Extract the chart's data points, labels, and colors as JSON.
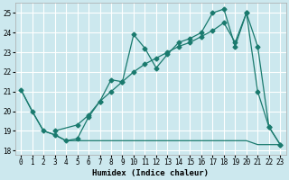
{
  "xlabel": "Humidex (Indice chaleur)",
  "xlim": [
    -0.5,
    23.5
  ],
  "ylim": [
    17.8,
    25.5
  ],
  "yticks": [
    18,
    19,
    20,
    21,
    22,
    23,
    24,
    25
  ],
  "xticks": [
    0,
    1,
    2,
    3,
    4,
    5,
    6,
    7,
    8,
    9,
    10,
    11,
    12,
    13,
    14,
    15,
    16,
    17,
    18,
    19,
    20,
    21,
    22,
    23
  ],
  "background_color": "#cce8ee",
  "grid_color": "#ffffff",
  "line_color": "#1a7a6e",
  "curve1_x": [
    0,
    1,
    2,
    3,
    4,
    5,
    6,
    7,
    8,
    9,
    10,
    11,
    12,
    13,
    14,
    15,
    16,
    17,
    18,
    19,
    20,
    21,
    22,
    23
  ],
  "curve1_y": [
    21.1,
    20.0,
    19.0,
    18.8,
    18.5,
    18.6,
    19.7,
    20.5,
    21.6,
    21.5,
    23.9,
    23.2,
    22.2,
    22.9,
    23.5,
    23.7,
    24.0,
    25.0,
    25.2,
    23.3,
    25.0,
    21.0,
    19.2,
    18.3
  ],
  "curve2_x": [
    0,
    1,
    2,
    3,
    4,
    5,
    6,
    7,
    8,
    9,
    10,
    11,
    12,
    13,
    14,
    15,
    16,
    17,
    18,
    19,
    20,
    21,
    22,
    23
  ],
  "curve2_y": [
    21.1,
    20.0,
    19.0,
    18.8,
    18.5,
    18.5,
    18.5,
    18.5,
    18.5,
    18.5,
    18.5,
    18.5,
    18.5,
    18.5,
    18.5,
    18.5,
    18.5,
    18.5,
    18.5,
    18.5,
    18.5,
    18.3,
    18.3,
    18.3
  ],
  "curve3_x": [
    3,
    5,
    6,
    7,
    8,
    9,
    10,
    11,
    12,
    13,
    14,
    15,
    16,
    17,
    18,
    19,
    20,
    21,
    22,
    23
  ],
  "curve3_y": [
    19.0,
    19.3,
    19.8,
    20.5,
    21.0,
    21.5,
    22.0,
    22.4,
    22.7,
    23.0,
    23.3,
    23.5,
    23.8,
    24.1,
    24.5,
    23.5,
    25.0,
    23.3,
    19.2,
    18.3
  ]
}
